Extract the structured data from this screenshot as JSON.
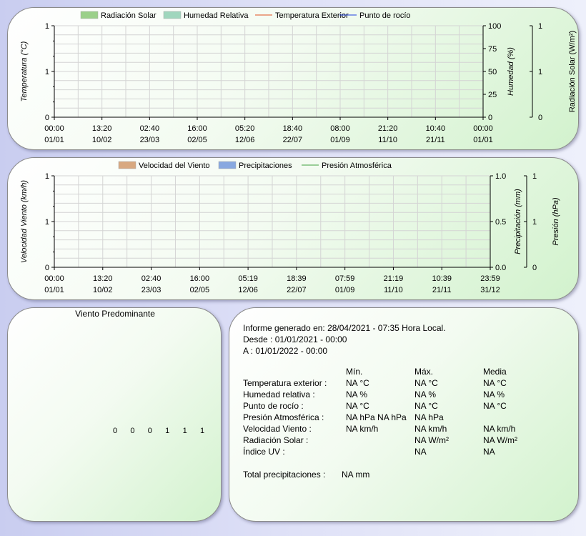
{
  "chart_data": [
    {
      "type": "area",
      "legend": [
        "Radiación Solar",
        "Humedad Relativa",
        "Temperatura Exterior",
        "Punto de rocío"
      ],
      "legend_colors": [
        "#9bd08a",
        "#9fd6bd",
        "#e05020",
        "#2040e0"
      ],
      "series": [
        {
          "name": "Radiación Solar",
          "values": []
        },
        {
          "name": "Humedad Relativa",
          "values": []
        },
        {
          "name": "Temperatura Exterior",
          "values": []
        },
        {
          "name": "Punto de rocío",
          "values": []
        }
      ],
      "x_ticks": [
        [
          "00:00",
          "01/01"
        ],
        [
          "13:20",
          "10/02"
        ],
        [
          "02:40",
          "23/03"
        ],
        [
          "16:00",
          "02/05"
        ],
        [
          "05:20",
          "12/06"
        ],
        [
          "18:40",
          "22/07"
        ],
        [
          "08:00",
          "01/09"
        ],
        [
          "21:20",
          "11/10"
        ],
        [
          "10:40",
          "21/11"
        ],
        [
          "00:00",
          "01/01"
        ]
      ],
      "y_left": {
        "label": "Temperatura (°C)",
        "ticks": [
          "1",
          "1",
          "0"
        ]
      },
      "y_right": {
        "label": "Humedad (%)",
        "ticks": [
          "100",
          "75",
          "50",
          "25",
          "0"
        ]
      },
      "y_right2": {
        "label": "Radiación Solar (W/m²)",
        "ticks": [
          "1",
          "1",
          "0"
        ]
      },
      "grid": true,
      "legend_position": "top"
    },
    {
      "type": "bar",
      "legend": [
        "Velocidad del Viento",
        "Precipitaciones",
        "Presión Atmosférica"
      ],
      "legend_colors": [
        "#d8a880",
        "#88a8e0",
        "#40a040"
      ],
      "series": [
        {
          "name": "Velocidad del Viento",
          "values": []
        },
        {
          "name": "Precipitaciones",
          "values": []
        },
        {
          "name": "Presión Atmosférica",
          "values": []
        }
      ],
      "x_ticks": [
        [
          "00:00",
          "01/01"
        ],
        [
          "13:20",
          "10/02"
        ],
        [
          "02:40",
          "23/03"
        ],
        [
          "16:00",
          "02/05"
        ],
        [
          "05:19",
          "12/06"
        ],
        [
          "18:39",
          "22/07"
        ],
        [
          "07:59",
          "01/09"
        ],
        [
          "21:19",
          "11/10"
        ],
        [
          "10:39",
          "21/11"
        ],
        [
          "23:59",
          "31/12"
        ]
      ],
      "y_left": {
        "label": "Velocidad Viento (km/h)",
        "ticks": [
          "1",
          "1",
          "0"
        ]
      },
      "y_right": {
        "label": "Precipitación (mm)",
        "ticks": [
          "1.0",
          "0.5",
          "0.0"
        ]
      },
      "y_right2": {
        "label": "Presión (hPa)",
        "ticks": [
          "1",
          "1",
          "0"
        ]
      },
      "grid": true,
      "legend_position": "top"
    }
  ],
  "wind": {
    "title": "Viento Predominante",
    "labels": [
      "0",
      "0",
      "0",
      "1",
      "1",
      "1"
    ]
  },
  "report": {
    "generated": "Informe generado en: 28/04/2021 - 07:35 Hora Local.",
    "from": "Desde : 01/01/2021 - 00:00",
    "to": "A : 01/01/2022 - 00:00",
    "headers": [
      "",
      "Mín.",
      "Máx.",
      "Media"
    ],
    "rows": [
      [
        "Temperatura exterior :",
        "NA °C",
        "NA °C",
        "NA °C"
      ],
      [
        "Humedad relativa :",
        "NA %",
        "NA %",
        "NA %"
      ],
      [
        "Punto de rocío :",
        "NA °C",
        "NA °C",
        "NA °C"
      ],
      [
        "Presión Atmosférica :",
        "NA hPa NA hPa",
        "NA hPa",
        ""
      ],
      [
        "Velocidad Viento :",
        "NA km/h",
        "NA km/h",
        "NA km/h"
      ],
      [
        "Radiación Solar :",
        "",
        "NA W/m²",
        "NA W/m²"
      ],
      [
        "Índice UV :",
        "",
        "NA",
        "NA"
      ]
    ],
    "rain_label": "Total precipitaciones :",
    "rain_value": "NA mm"
  }
}
